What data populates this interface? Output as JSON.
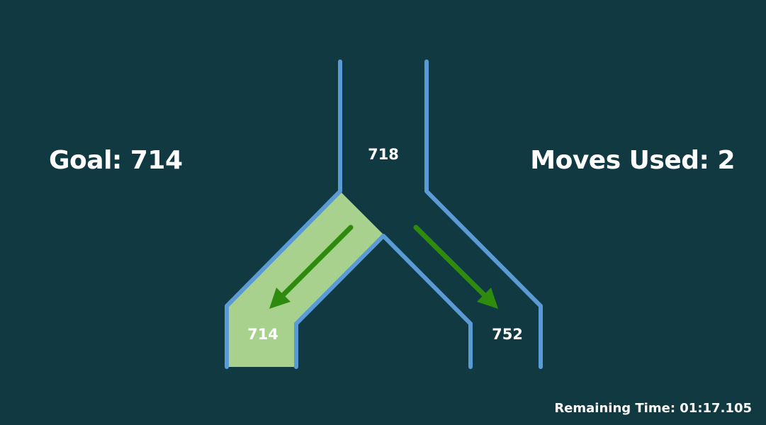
{
  "hud": {
    "goal_label": "Goal: 714",
    "moves_label": "Moves Used: 2",
    "timer_label": "Remaining Time: 01:17.105"
  },
  "tree": {
    "root_value": "718",
    "left_value": "714",
    "right_value": "752",
    "selected_branch": "left"
  },
  "colors": {
    "background": "#113942",
    "wall": "#5b9bd5",
    "highlight": "#a9d18e",
    "arrow": "#2e8b0e",
    "text": "#ffffff"
  }
}
